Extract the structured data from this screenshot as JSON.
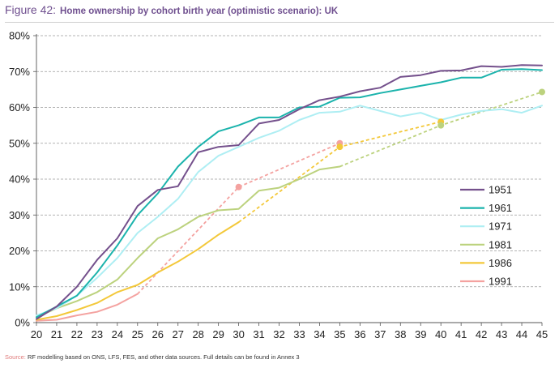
{
  "header": {
    "figure_label": "Figure 42:",
    "title": "Home ownership by cohort birth year (optimistic scenario): UK"
  },
  "footer": {
    "source_label": "Source:",
    "source_text": "RF modelling based on ONS, LFS, FES, and other data sources. Full details can be found in Annex 3"
  },
  "colors": {
    "1951": "#74508c",
    "1961": "#1bb3ac",
    "1971": "#aeeef3",
    "1981": "#bcd27e",
    "1986": "#f3c83a",
    "1991": "#f4a2a0"
  },
  "chart_data": {
    "type": "line",
    "title": "",
    "xlabel": "",
    "ylabel": "",
    "xlim": [
      20,
      45
    ],
    "ylim": [
      0,
      80
    ],
    "x_ticks": [
      "20",
      "21",
      "22",
      "23",
      "24",
      "25",
      "26",
      "27",
      "28",
      "29",
      "30",
      "31",
      "32",
      "33",
      "34",
      "35",
      "36",
      "37",
      "38",
      "39",
      "40",
      "41",
      "42",
      "43",
      "44",
      "45"
    ],
    "y_ticks": [
      "0%",
      "10%",
      "20%",
      "30%",
      "40%",
      "50%",
      "60%",
      "70%",
      "80%"
    ],
    "grid": "horizontal dashed",
    "legend_position": "right",
    "series": [
      {
        "name": "1951",
        "color": "#74508c",
        "points": [
          [
            20,
            1
          ],
          [
            21,
            4.5
          ],
          [
            22,
            10
          ],
          [
            23,
            17.5
          ],
          [
            24,
            23.5
          ],
          [
            25,
            32.5
          ],
          [
            26,
            37
          ],
          [
            27,
            38
          ],
          [
            28,
            47.5
          ],
          [
            29,
            49
          ],
          [
            30,
            49.5
          ],
          [
            31,
            55.5
          ],
          [
            32,
            56.5
          ],
          [
            33,
            59.5
          ],
          [
            34,
            62
          ],
          [
            35,
            63
          ],
          [
            36,
            64.5
          ],
          [
            37,
            65.5
          ],
          [
            38,
            68.5
          ],
          [
            39,
            69
          ],
          [
            40,
            70.2
          ],
          [
            41,
            70.3
          ],
          [
            42,
            71.5
          ],
          [
            43,
            71.3
          ],
          [
            44,
            71.8
          ],
          [
            45,
            71.7
          ]
        ]
      },
      {
        "name": "1961",
        "color": "#1bb3ac",
        "points": [
          [
            20,
            1.5
          ],
          [
            21,
            4.5
          ],
          [
            22,
            7.5
          ],
          [
            23,
            14
          ],
          [
            24,
            21.5
          ],
          [
            25,
            30
          ],
          [
            26,
            36
          ],
          [
            27,
            43.5
          ],
          [
            28,
            49
          ],
          [
            29,
            53.3
          ],
          [
            30,
            55
          ],
          [
            31,
            57.2
          ],
          [
            32,
            57.2
          ],
          [
            33,
            60
          ],
          [
            34,
            60.2
          ],
          [
            35,
            62.7
          ],
          [
            36,
            62.8
          ],
          [
            37,
            64
          ],
          [
            38,
            65
          ],
          [
            39,
            66
          ],
          [
            40,
            67
          ],
          [
            41,
            68.3
          ],
          [
            42,
            68.3
          ],
          [
            43,
            70.5
          ],
          [
            44,
            70.7
          ],
          [
            45,
            70.4
          ]
        ]
      },
      {
        "name": "1971",
        "color": "#aeeef3",
        "points": [
          [
            20,
            2
          ],
          [
            21,
            4
          ],
          [
            22,
            7.5
          ],
          [
            23,
            12.5
          ],
          [
            24,
            18
          ],
          [
            25,
            25
          ],
          [
            26,
            29.5
          ],
          [
            27,
            34.5
          ],
          [
            28,
            42
          ],
          [
            29,
            46.5
          ],
          [
            30,
            49
          ],
          [
            31,
            51.5
          ],
          [
            32,
            53.5
          ],
          [
            33,
            56.5
          ],
          [
            34,
            58.5
          ],
          [
            35,
            58.8
          ],
          [
            36,
            60.5
          ],
          [
            37,
            59
          ],
          [
            38,
            57.5
          ],
          [
            39,
            58.5
          ],
          [
            40,
            56.5
          ],
          [
            41,
            58
          ],
          [
            42,
            59
          ],
          [
            43,
            59.5
          ],
          [
            44,
            58.5
          ],
          [
            45,
            60.5
          ]
        ]
      },
      {
        "name": "1981",
        "color": "#bcd27e",
        "points": [
          [
            20,
            1.5
          ],
          [
            21,
            4
          ],
          [
            22,
            6
          ],
          [
            23,
            8.5
          ],
          [
            24,
            12
          ],
          [
            25,
            18
          ],
          [
            26,
            23.5
          ],
          [
            27,
            26
          ],
          [
            28,
            29.5
          ],
          [
            29,
            31.3
          ],
          [
            30,
            31.7
          ],
          [
            31,
            36.8
          ],
          [
            32,
            37.6
          ],
          [
            33,
            40
          ],
          [
            34,
            42.7
          ],
          [
            35,
            43.5
          ]
        ],
        "projection": [
          [
            35,
            43.5
          ],
          [
            40,
            55
          ],
          [
            45,
            64.3
          ]
        ]
      },
      {
        "name": "1986",
        "color": "#f3c83a",
        "points": [
          [
            20,
            0.8
          ],
          [
            21,
            1.8
          ],
          [
            22,
            3.5
          ],
          [
            23,
            5.5
          ],
          [
            24,
            8.5
          ],
          [
            25,
            10.5
          ],
          [
            26,
            14
          ],
          [
            27,
            17
          ],
          [
            28,
            20.5
          ],
          [
            29,
            24.5
          ],
          [
            30,
            28
          ]
        ],
        "projection": [
          [
            30,
            28
          ],
          [
            35,
            49
          ],
          [
            40,
            56
          ]
        ]
      },
      {
        "name": "1991",
        "color": "#f4a2a0",
        "points": [
          [
            20,
            0.5
          ],
          [
            21,
            0.8
          ],
          [
            22,
            2
          ],
          [
            23,
            3
          ],
          [
            24,
            5
          ],
          [
            25,
            8
          ]
        ],
        "projection": [
          [
            25,
            8
          ],
          [
            30,
            37.8
          ],
          [
            35,
            50
          ]
        ]
      }
    ],
    "markers": [
      {
        "series": "1991",
        "x": 30,
        "y": 37.8
      },
      {
        "series": "1991",
        "x": 35,
        "y": 50
      },
      {
        "series": "1986",
        "x": 35,
        "y": 49
      },
      {
        "series": "1986",
        "x": 40,
        "y": 56
      },
      {
        "series": "1981",
        "x": 40,
        "y": 55
      },
      {
        "series": "1981",
        "x": 45,
        "y": 64.3
      }
    ]
  }
}
